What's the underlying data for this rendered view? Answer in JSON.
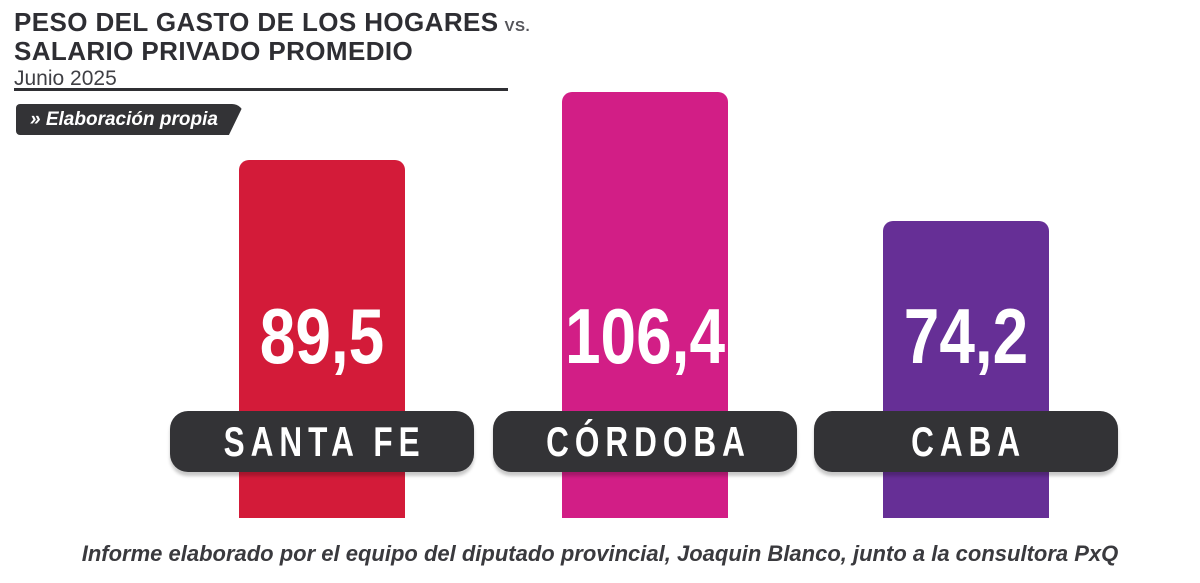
{
  "header": {
    "title_line1": "PESO DEL GASTO DE LOS HOGARES",
    "title_vs": "VS.",
    "title_line2": "SALARIO PRIVADO PROMEDIO",
    "subtitle": "Junio 2025",
    "source_badge": "» Elaboración propia"
  },
  "chart_data": {
    "type": "bar",
    "title": "PESO DEL GASTO DE LOS HOGARES VS. SALARIO PRIVADO PROMEDIO",
    "subtitle": "Junio 2025",
    "categories": [
      "SANTA FE",
      "CÓRDOBA",
      "CABA"
    ],
    "values": [
      89.5,
      106.4,
      74.2
    ],
    "value_labels": [
      "89,5",
      "106,4",
      "74,2"
    ],
    "bar_colors": [
      "#d31b39",
      "#d21e86",
      "#662f96"
    ],
    "category_pill_color": "#333336",
    "orientation": "vertical",
    "ylim": [
      0,
      110
    ],
    "grid": false,
    "legend": false
  },
  "footer": {
    "credit": "Informe elaborado por el equipo del diputado provincial, Joaquin Blanco, junto a la consultora PxQ"
  },
  "colors": {
    "background": "#ffffff",
    "title_text": "#2e2e33",
    "vs_text": "#55555a",
    "dark_pill": "#333336",
    "santa_fe_bar": "#d31b39",
    "cordoba_bar": "#d21e86",
    "caba_bar": "#662f96",
    "footer_text": "#3a3a3e"
  }
}
